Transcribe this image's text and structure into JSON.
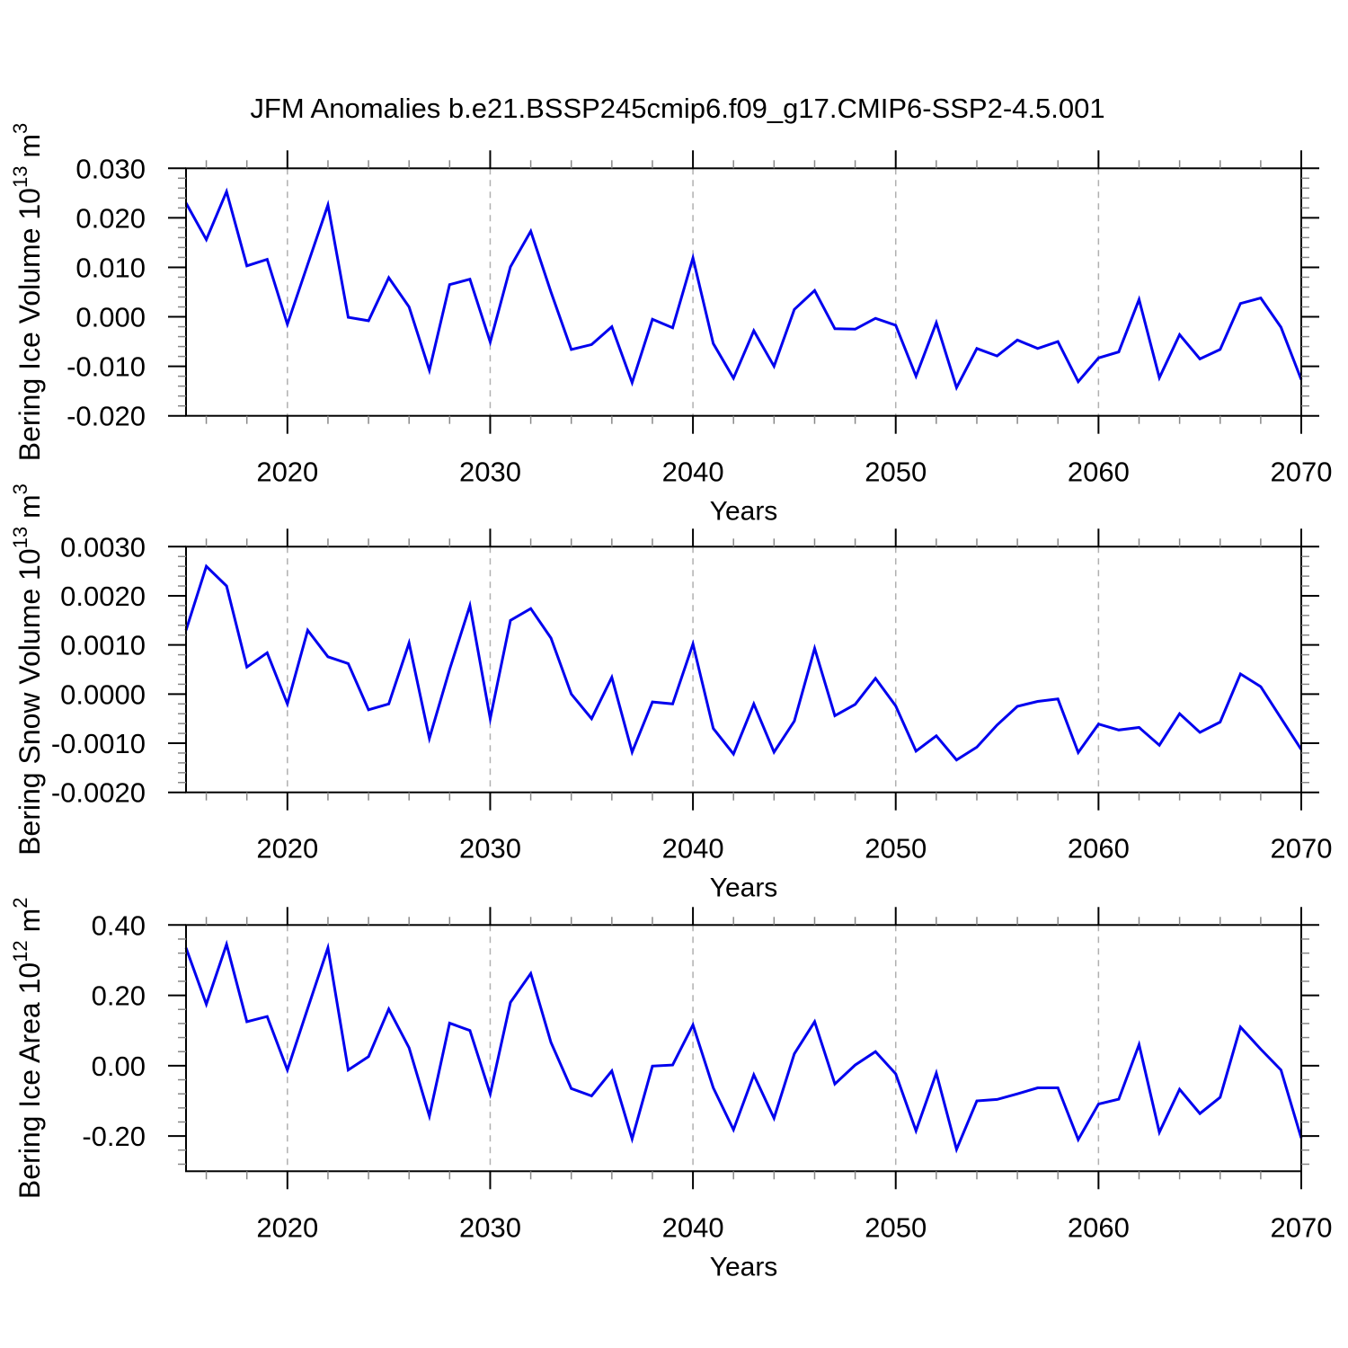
{
  "title": "JFM Anomalies b.e21.BSSP245cmip6.f09_g17.CMIP6-SSP2-4.5.001",
  "colors": {
    "line": "#0000ee",
    "frame": "#000000",
    "major_tick": "#000000",
    "minor_tick": "#888888",
    "gridline": "#b0b0b0"
  },
  "chart_data": [
    {
      "type": "line",
      "ylabel": "Bering Ice Volume 10^13 m^3",
      "xlabel": "Years",
      "xlim": [
        2015,
        2070
      ],
      "ylim": [
        -0.02,
        0.03
      ],
      "x_ticks": [
        2020,
        2030,
        2040,
        2050,
        2060,
        2070
      ],
      "x_tick_labels": [
        "2020",
        "2030",
        "2040",
        "2050",
        "2060",
        "2070"
      ],
      "x_minor_step": 2,
      "y_ticks": [
        0.03,
        0.02,
        0.01,
        0.0,
        -0.01,
        -0.02
      ],
      "y_tick_labels": [
        "0.030",
        "0.020",
        "0.010",
        "0.000",
        "-0.010",
        "-0.020"
      ],
      "y_minor_step": 0.002,
      "grid": "dashed-vertical-at-x-majors",
      "legend": "none",
      "years": [
        2015,
        2016,
        2017,
        2018,
        2019,
        2020,
        2021,
        2022,
        2023,
        2024,
        2025,
        2026,
        2027,
        2028,
        2029,
        2030,
        2031,
        2032,
        2033,
        2034,
        2035,
        2036,
        2037,
        2038,
        2039,
        2040,
        2041,
        2042,
        2043,
        2044,
        2045,
        2046,
        2047,
        2048,
        2049,
        2050,
        2051,
        2052,
        2053,
        2054,
        2055,
        2056,
        2057,
        2058,
        2059,
        2060,
        2061,
        2062,
        2063,
        2064,
        2065,
        2066,
        2067,
        2068,
        2069,
        2070
      ],
      "values": [
        0.023,
        0.0156,
        0.0253,
        0.0103,
        0.0116,
        -0.0015,
        0.0106,
        0.0226,
        -0.0001,
        -0.0008,
        0.0079,
        0.002,
        -0.0108,
        0.0065,
        0.0076,
        -0.0051,
        0.0101,
        0.0173,
        0.005,
        -0.0066,
        -0.0056,
        -0.002,
        -0.0133,
        -0.0005,
        -0.0022,
        0.0119,
        -0.0054,
        -0.0124,
        -0.0028,
        -0.01,
        0.0015,
        0.0053,
        -0.0024,
        -0.0025,
        -0.0003,
        -0.0017,
        -0.012,
        -0.0012,
        -0.0143,
        -0.0064,
        -0.0079,
        -0.0047,
        -0.0064,
        -0.005,
        -0.0131,
        -0.0083,
        -0.0071,
        0.0035,
        -0.0123,
        -0.0036,
        -0.0085,
        -0.0066,
        0.0027,
        0.0038,
        -0.0021,
        -0.0127
      ]
    },
    {
      "type": "line",
      "ylabel": "Bering Snow Volume 10^13 m^3",
      "xlabel": "Years",
      "xlim": [
        2015,
        2070
      ],
      "ylim": [
        -0.002,
        0.003
      ],
      "x_ticks": [
        2020,
        2030,
        2040,
        2050,
        2060,
        2070
      ],
      "x_tick_labels": [
        "2020",
        "2030",
        "2040",
        "2050",
        "2060",
        "2070"
      ],
      "x_minor_step": 2,
      "y_ticks": [
        0.003,
        0.002,
        0.001,
        0.0,
        -0.001,
        -0.002
      ],
      "y_tick_labels": [
        "0.0030",
        "0.0020",
        "0.0010",
        "0.0000",
        "-0.0010",
        "-0.0020"
      ],
      "y_minor_step": 0.0002,
      "grid": "dashed-vertical-at-x-majors",
      "legend": "none",
      "years": [
        2015,
        2016,
        2017,
        2018,
        2019,
        2020,
        2021,
        2022,
        2023,
        2024,
        2025,
        2026,
        2027,
        2028,
        2029,
        2030,
        2031,
        2032,
        2033,
        2034,
        2035,
        2036,
        2037,
        2038,
        2039,
        2040,
        2041,
        2042,
        2043,
        2044,
        2045,
        2046,
        2047,
        2048,
        2049,
        2050,
        2051,
        2052,
        2053,
        2054,
        2055,
        2056,
        2057,
        2058,
        2059,
        2060,
        2061,
        2062,
        2063,
        2064,
        2065,
        2066,
        2067,
        2068,
        2069,
        2070
      ],
      "values": [
        0.0013,
        0.0026,
        0.0022,
        0.00055,
        0.00084,
        -0.0002,
        0.0013,
        0.00076,
        0.00062,
        -0.00032,
        -0.0002,
        0.00104,
        -0.0009,
        0.0005,
        0.0018,
        -0.0005,
        0.0015,
        0.00174,
        0.00114,
        0.0,
        -0.0005,
        0.00034,
        -0.00118,
        -0.00016,
        -0.0002,
        0.00102,
        -0.0007,
        -0.00122,
        -0.0002,
        -0.00118,
        -0.00055,
        0.00093,
        -0.00044,
        -0.00021,
        0.00032,
        -0.00024,
        -0.00116,
        -0.00085,
        -0.00134,
        -0.00108,
        -0.00063,
        -0.00025,
        -0.00015,
        -0.0001,
        -0.00119,
        -0.00061,
        -0.00073,
        -0.00068,
        -0.00104,
        -0.0004,
        -0.00078,
        -0.00057,
        0.00041,
        0.00015,
        -0.00049,
        -0.00113
      ]
    },
    {
      "type": "line",
      "ylabel": "Bering Ice Area 10^12 m^2",
      "xlabel": "Years",
      "xlim": [
        2015,
        2070
      ],
      "ylim": [
        -0.3,
        0.4
      ],
      "x_ticks": [
        2020,
        2030,
        2040,
        2050,
        2060,
        2070
      ],
      "x_tick_labels": [
        "2020",
        "2030",
        "2040",
        "2050",
        "2060",
        "2070"
      ],
      "x_minor_step": 2,
      "y_ticks": [
        0.4,
        0.2,
        0.0,
        -0.2
      ],
      "y_tick_labels": [
        "0.40",
        "0.20",
        "0.00",
        "-0.20"
      ],
      "y_minor_step": 0.04,
      "grid": "dashed-vertical-at-x-majors",
      "legend": "none",
      "years": [
        2015,
        2016,
        2017,
        2018,
        2019,
        2020,
        2021,
        2022,
        2023,
        2024,
        2025,
        2026,
        2027,
        2028,
        2029,
        2030,
        2031,
        2032,
        2033,
        2034,
        2035,
        2036,
        2037,
        2038,
        2039,
        2040,
        2041,
        2042,
        2043,
        2044,
        2045,
        2046,
        2047,
        2048,
        2049,
        2050,
        2051,
        2052,
        2053,
        2054,
        2055,
        2056,
        2057,
        2058,
        2059,
        2060,
        2061,
        2062,
        2063,
        2064,
        2065,
        2066,
        2067,
        2068,
        2069,
        2070
      ],
      "values": [
        0.335,
        0.175,
        0.345,
        0.125,
        0.14,
        -0.012,
        0.163,
        0.335,
        -0.012,
        0.026,
        0.161,
        0.051,
        -0.143,
        0.121,
        0.1,
        -0.08,
        0.18,
        0.262,
        0.066,
        -0.065,
        -0.086,
        -0.015,
        -0.208,
        -0.001,
        0.002,
        0.116,
        -0.063,
        -0.182,
        -0.026,
        -0.149,
        0.034,
        0.125,
        -0.052,
        0.002,
        0.04,
        -0.023,
        -0.185,
        -0.021,
        -0.238,
        -0.1,
        -0.096,
        -0.08,
        -0.063,
        -0.063,
        -0.21,
        -0.109,
        -0.095,
        0.06,
        -0.189,
        -0.067,
        -0.136,
        -0.09,
        0.11,
        0.047,
        -0.012,
        -0.206
      ]
    }
  ]
}
